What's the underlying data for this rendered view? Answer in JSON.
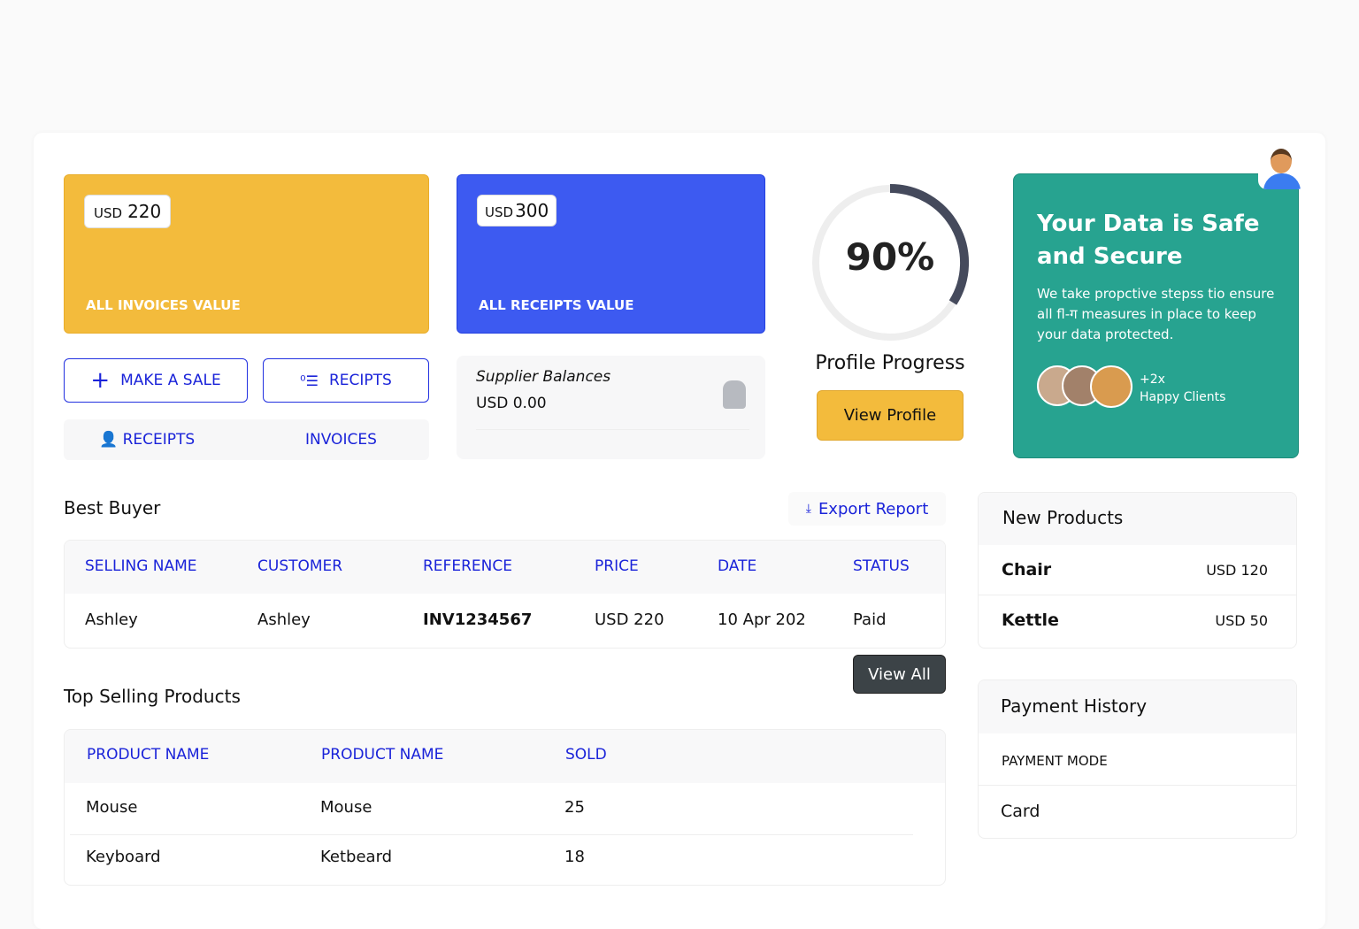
{
  "cards": {
    "invoices": {
      "currency": "USD",
      "amount": "220",
      "label": "ALL INVOICES VALUE",
      "color": "#f3bb3c"
    },
    "receipts": {
      "currency": "USD",
      "amount": "300",
      "label": "ALL RECEIPTS VALUE",
      "color": "#3d5af1"
    }
  },
  "actions": {
    "make_sale": "MAKE A SALE",
    "recipts": "RECIPTS",
    "receipts": "RECEIPTS",
    "invoices": "INVOICES"
  },
  "supplier": {
    "title": "Supplier Balances",
    "value": "USD 0.00"
  },
  "profile": {
    "progress_text": "90%",
    "progress": 90,
    "title": "Profile Progress",
    "button": "View Profile"
  },
  "security": {
    "title": "Your Data is Safe and Secure",
    "body": "We take propctive stepss tio ensure all fl-ग measures in place to keep your data protected.",
    "clients_count": "+2x",
    "clients_label": "Happy Clients",
    "color": "#27a390"
  },
  "best_buyer": {
    "title": "Best Buyer",
    "export": "Export Report",
    "columns": [
      "SELLING NAME",
      "CUSTOMER",
      "REFERENCE",
      "PRICE",
      "DATE",
      "STATUS"
    ],
    "rows": [
      [
        "Ashley",
        "Ashley",
        "INV1234567",
        "USD 220",
        "10  Apr 202",
        "Paid"
      ]
    ],
    "view_all": "View All"
  },
  "top_selling": {
    "title": "Top Selling Products",
    "columns": [
      "PRODUCT NAME",
      "PRODUCT NAME",
      "SOLD"
    ],
    "rows": [
      [
        "Mouse",
        "Mouse",
        "25"
      ],
      [
        "Keyboard",
        "Ketbeard",
        "18"
      ]
    ]
  },
  "new_products": {
    "title": "New Products",
    "items": [
      {
        "name": "Chair",
        "price": "USD 120"
      },
      {
        "name": "Kettle",
        "price": "USD 50"
      }
    ]
  },
  "payment_history": {
    "title": "Payment History",
    "column": "PAYMENT MODE",
    "rows": [
      "Card"
    ]
  }
}
